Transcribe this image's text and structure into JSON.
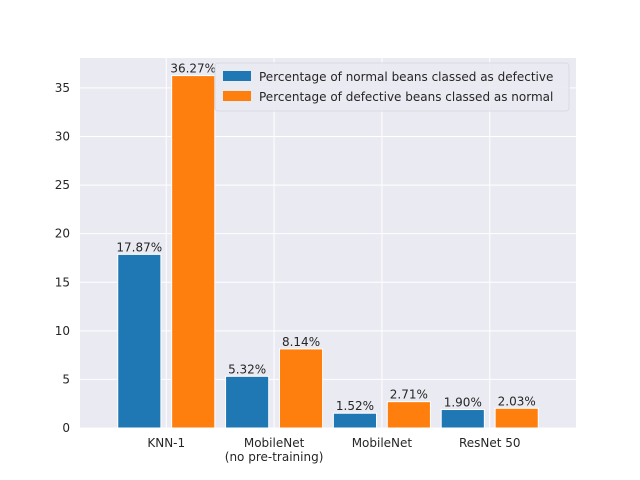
{
  "chart_data": {
    "type": "bar",
    "title": "",
    "xlabel": "",
    "ylabel": "",
    "categories": [
      [
        "KNN-1"
      ],
      [
        "MobileNet",
        "(no pre-training)"
      ],
      [
        "MobileNet"
      ],
      [
        "ResNet 50"
      ]
    ],
    "series": [
      {
        "name": "Percentage of normal beans classed as defective",
        "color": "#1f77b4",
        "values": [
          17.87,
          5.32,
          1.52,
          1.9
        ],
        "labels": [
          "17.87%",
          "5.32%",
          "1.52%",
          "1.90%"
        ]
      },
      {
        "name": "Percentage of defective beans classed as normal",
        "color": "#ff7f0e",
        "values": [
          36.27,
          8.14,
          2.71,
          2.03
        ],
        "labels": [
          "36.27%",
          "8.14%",
          "2.71%",
          "2.03%"
        ]
      }
    ],
    "ylim": [
      0,
      38.08
    ],
    "yticks": [
      0,
      5,
      10,
      15,
      20,
      25,
      30,
      35
    ],
    "grid": true,
    "legend": "top-right",
    "background": "#eaeaf2"
  }
}
